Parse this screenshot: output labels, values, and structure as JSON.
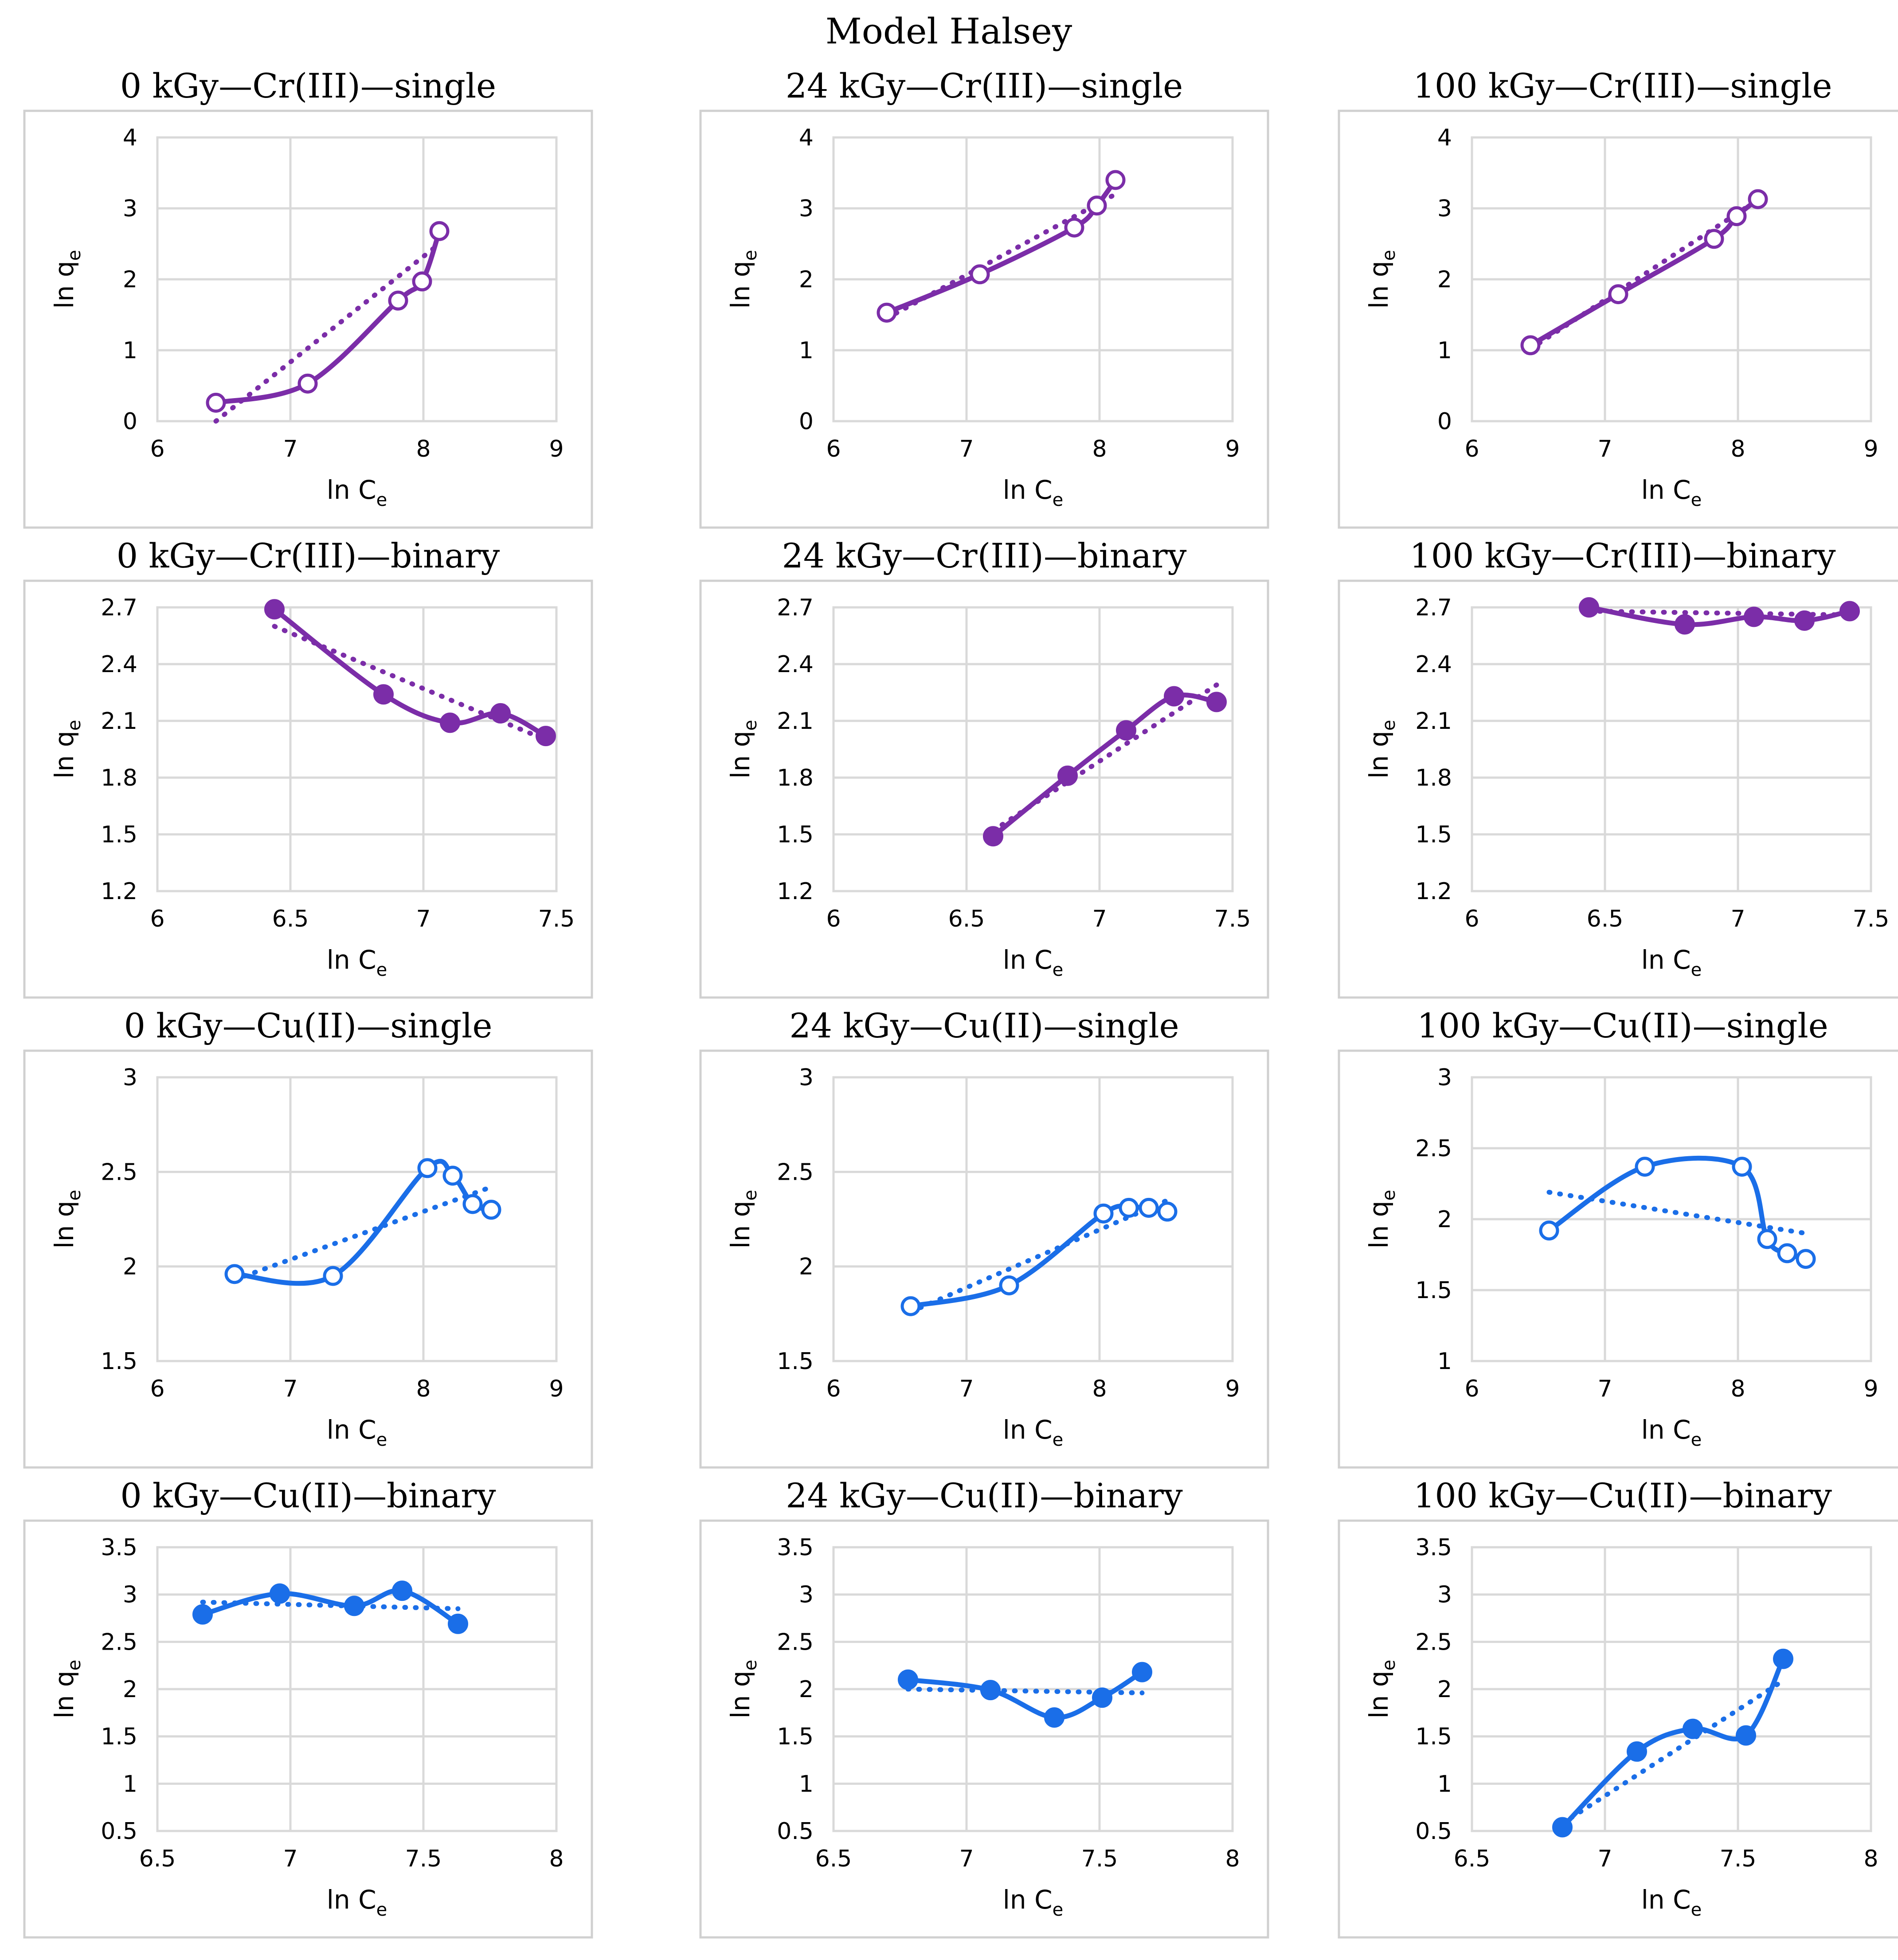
{
  "figure": {
    "title": "Model Halsey"
  },
  "colors": {
    "cr": "#7B2DA8",
    "cu": "#1A6EE8"
  },
  "chart_data": [
    {
      "type": "scatter",
      "title": "0 kGy—Cr(III)—single",
      "xlabel": "ln C",
      "xlabel_sub": "e",
      "ylabel": "ln q",
      "ylabel_sub": "e",
      "xlim": [
        6,
        9
      ],
      "ylim": [
        0,
        4
      ],
      "xticks": [
        6,
        7,
        8,
        9
      ],
      "xtick_labels": [
        "6",
        "7",
        "8",
        "9"
      ],
      "yticks": [
        0,
        1,
        2,
        3,
        4
      ],
      "ytick_labels": [
        "0",
        "1",
        "2",
        "3",
        "4"
      ],
      "color": "#7B2DA8",
      "marker": "open",
      "grid": true,
      "x": [
        6.44,
        7.13,
        7.81,
        7.99,
        8.12
      ],
      "y": [
        0.26,
        0.53,
        1.7,
        1.97,
        2.68
      ],
      "trendline": [
        [
          6.44,
          0.0
        ],
        [
          8.12,
          2.5
        ]
      ]
    },
    {
      "type": "scatter",
      "title": "24 kGy—Cr(III)—single",
      "xlabel": "ln C",
      "xlabel_sub": "e",
      "ylabel": "ln q",
      "ylabel_sub": "e",
      "xlim": [
        6,
        9
      ],
      "ylim": [
        0,
        4
      ],
      "xticks": [
        6,
        7,
        8,
        9
      ],
      "xtick_labels": [
        "6",
        "7",
        "8",
        "9"
      ],
      "yticks": [
        0,
        1,
        2,
        3,
        4
      ],
      "ytick_labels": [
        "0",
        "1",
        "2",
        "3",
        "4"
      ],
      "color": "#7B2DA8",
      "marker": "open",
      "grid": true,
      "x": [
        6.4,
        7.1,
        7.81,
        7.98,
        8.12
      ],
      "y": [
        1.53,
        2.07,
        2.73,
        3.04,
        3.4
      ],
      "trendline": [
        [
          6.4,
          1.45
        ],
        [
          8.12,
          3.2
        ]
      ]
    },
    {
      "type": "scatter",
      "title": "100 kGy—Cr(III)—single",
      "xlabel": "ln C",
      "xlabel_sub": "e",
      "ylabel": "ln q",
      "ylabel_sub": "e",
      "xlim": [
        6,
        9
      ],
      "ylim": [
        0,
        4
      ],
      "xticks": [
        6,
        7,
        8,
        9
      ],
      "xtick_labels": [
        "6",
        "7",
        "8",
        "9"
      ],
      "yticks": [
        0,
        1,
        2,
        3,
        4
      ],
      "ytick_labels": [
        "0",
        "1",
        "2",
        "3",
        "4"
      ],
      "color": "#7B2DA8",
      "marker": "open",
      "grid": true,
      "x": [
        6.44,
        7.1,
        7.82,
        7.99,
        8.15
      ],
      "y": [
        1.07,
        1.79,
        2.57,
        2.89,
        3.13
      ],
      "trendline": [
        [
          6.44,
          1.02
        ],
        [
          8.15,
          3.12
        ]
      ]
    },
    {
      "type": "scatter",
      "title": "0 kGy—Cr(III)—binary",
      "xlabel": "ln C",
      "xlabel_sub": "e",
      "ylabel": "ln q",
      "ylabel_sub": "e",
      "xlim": [
        6,
        7.5
      ],
      "ylim": [
        1.2,
        2.7
      ],
      "xticks": [
        6,
        6.5,
        7,
        7.5
      ],
      "xtick_labels": [
        "6",
        "6.5",
        "7",
        "7.5"
      ],
      "yticks": [
        1.2,
        1.5,
        1.8,
        2.1,
        2.4,
        2.7
      ],
      "ytick_labels": [
        "1.2",
        "1.5",
        "1.8",
        "2.1",
        "2.4",
        "2.7"
      ],
      "color": "#7B2DA8",
      "marker": "filled",
      "grid": true,
      "x": [
        6.44,
        6.85,
        7.1,
        7.29,
        7.46
      ],
      "y": [
        2.69,
        2.24,
        2.09,
        2.14,
        2.02
      ],
      "trendline": [
        [
          6.44,
          2.6
        ],
        [
          7.46,
          2.0
        ]
      ]
    },
    {
      "type": "scatter",
      "title": "24 kGy—Cr(III)—binary",
      "xlabel": "ln C",
      "xlabel_sub": "e",
      "ylabel": "ln q",
      "ylabel_sub": "e",
      "xlim": [
        6,
        7.5
      ],
      "ylim": [
        1.2,
        2.7
      ],
      "xticks": [
        6,
        6.5,
        7,
        7.5
      ],
      "xtick_labels": [
        "6",
        "6.5",
        "7",
        "7.5"
      ],
      "yticks": [
        1.2,
        1.5,
        1.8,
        2.1,
        2.4,
        2.7
      ],
      "ytick_labels": [
        "1.2",
        "1.5",
        "1.8",
        "2.1",
        "2.4",
        "2.7"
      ],
      "color": "#7B2DA8",
      "marker": "filled",
      "grid": true,
      "x": [
        6.6,
        6.88,
        7.1,
        7.28,
        7.44
      ],
      "y": [
        1.49,
        1.81,
        2.05,
        2.23,
        2.2
      ],
      "trendline": [
        [
          6.6,
          1.52
        ],
        [
          7.44,
          2.29
        ]
      ]
    },
    {
      "type": "scatter",
      "title": "100 kGy—Cr(III)—binary",
      "xlabel": "ln C",
      "xlabel_sub": "e",
      "ylabel": "ln q",
      "ylabel_sub": "e",
      "xlim": [
        6,
        7.5
      ],
      "ylim": [
        1.2,
        2.7
      ],
      "xticks": [
        6,
        6.5,
        7,
        7.5
      ],
      "xtick_labels": [
        "6",
        "6.5",
        "7",
        "7.5"
      ],
      "yticks": [
        1.2,
        1.5,
        1.8,
        2.1,
        2.4,
        2.7
      ],
      "ytick_labels": [
        "1.2",
        "1.5",
        "1.8",
        "2.1",
        "2.4",
        "2.7"
      ],
      "color": "#7B2DA8",
      "marker": "filled",
      "grid": true,
      "x": [
        6.44,
        6.8,
        7.06,
        7.25,
        7.42
      ],
      "y": [
        2.7,
        2.61,
        2.65,
        2.63,
        2.68
      ],
      "trendline": [
        [
          6.44,
          2.68
        ],
        [
          7.42,
          2.66
        ]
      ]
    },
    {
      "type": "scatter",
      "title": "0 kGy—Cu(II)—single",
      "xlabel": "ln C",
      "xlabel_sub": "e",
      "ylabel": "ln q",
      "ylabel_sub": "e",
      "xlim": [
        6,
        9
      ],
      "ylim": [
        1.5,
        3
      ],
      "xticks": [
        6,
        7,
        8,
        9
      ],
      "xtick_labels": [
        "6",
        "7",
        "8",
        "9"
      ],
      "yticks": [
        1.5,
        2,
        2.5,
        3
      ],
      "ytick_labels": [
        "1.5",
        "2",
        "2.5",
        "3"
      ],
      "color": "#1A6EE8",
      "marker": "open",
      "grid": true,
      "x": [
        6.58,
        7.32,
        8.03,
        8.22,
        8.37,
        8.51
      ],
      "y": [
        1.96,
        1.95,
        2.52,
        2.48,
        2.33,
        2.3
      ],
      "trendline": [
        [
          6.58,
          1.93
        ],
        [
          8.51,
          2.42
        ]
      ]
    },
    {
      "type": "scatter",
      "title": "24 kGy—Cu(II)—single",
      "xlabel": "ln C",
      "xlabel_sub": "e",
      "ylabel": "ln q",
      "ylabel_sub": "e",
      "xlim": [
        6,
        9
      ],
      "ylim": [
        1.5,
        3
      ],
      "xticks": [
        6,
        7,
        8,
        9
      ],
      "xtick_labels": [
        "6",
        "7",
        "8",
        "9"
      ],
      "yticks": [
        1.5,
        2,
        2.5,
        3
      ],
      "ytick_labels": [
        "1.5",
        "2",
        "2.5",
        "3"
      ],
      "color": "#1A6EE8",
      "marker": "open",
      "grid": true,
      "x": [
        6.58,
        7.32,
        8.03,
        8.22,
        8.37,
        8.51
      ],
      "y": [
        1.79,
        1.9,
        2.28,
        2.31,
        2.31,
        2.29
      ],
      "trendline": [
        [
          6.58,
          1.76
        ],
        [
          8.51,
          2.35
        ]
      ]
    },
    {
      "type": "scatter",
      "title": "100 kGy—Cu(II)—single",
      "xlabel": "ln C",
      "xlabel_sub": "e",
      "ylabel": "ln q",
      "ylabel_sub": "e",
      "xlim": [
        6,
        9
      ],
      "ylim": [
        1,
        3
      ],
      "xticks": [
        6,
        7,
        8,
        9
      ],
      "xtick_labels": [
        "6",
        "7",
        "8",
        "9"
      ],
      "yticks": [
        1,
        1.5,
        2,
        2.5,
        3
      ],
      "ytick_labels": [
        "1",
        "1.5",
        "2",
        "2.5",
        "3"
      ],
      "color": "#1A6EE8",
      "marker": "open",
      "grid": true,
      "x": [
        6.58,
        7.3,
        8.03,
        8.22,
        8.37,
        8.51
      ],
      "y": [
        1.92,
        2.37,
        2.37,
        1.86,
        1.76,
        1.72
      ],
      "trendline": [
        [
          6.58,
          2.19
        ],
        [
          8.51,
          1.9
        ]
      ]
    },
    {
      "type": "scatter",
      "title": "0 kGy—Cu(II)—binary",
      "xlabel": "ln C",
      "xlabel_sub": "e",
      "ylabel": "ln q",
      "ylabel_sub": "e",
      "xlim": [
        6.5,
        8
      ],
      "ylim": [
        0.5,
        3.5
      ],
      "xticks": [
        6.5,
        7,
        7.5,
        8
      ],
      "xtick_labels": [
        "6.5",
        "7",
        "7.5",
        "8"
      ],
      "yticks": [
        0.5,
        1,
        1.5,
        2,
        2.5,
        3,
        3.5
      ],
      "ytick_labels": [
        "0.5",
        "1",
        "1.5",
        "2",
        "2.5",
        "3",
        "3.5"
      ],
      "color": "#1A6EE8",
      "marker": "filled",
      "grid": true,
      "x": [
        6.67,
        6.96,
        7.24,
        7.42,
        7.63
      ],
      "y": [
        2.79,
        3.01,
        2.88,
        3.04,
        2.69
      ],
      "trendline": [
        [
          6.67,
          2.92
        ],
        [
          7.63,
          2.85
        ]
      ]
    },
    {
      "type": "scatter",
      "title": "24 kGy—Cu(II)—binary",
      "xlabel": "ln C",
      "xlabel_sub": "e",
      "ylabel": "ln q",
      "ylabel_sub": "e",
      "xlim": [
        6.5,
        8
      ],
      "ylim": [
        0.5,
        3.5
      ],
      "xticks": [
        6.5,
        7,
        7.5,
        8
      ],
      "xtick_labels": [
        "6.5",
        "7",
        "7.5",
        "8"
      ],
      "yticks": [
        0.5,
        1,
        1.5,
        2,
        2.5,
        3,
        3.5
      ],
      "ytick_labels": [
        "0.5",
        "1",
        "1.5",
        "2",
        "2.5",
        "3",
        "3.5"
      ],
      "color": "#1A6EE8",
      "marker": "filled",
      "grid": true,
      "x": [
        6.78,
        7.09,
        7.33,
        7.51,
        7.66
      ],
      "y": [
        2.1,
        1.99,
        1.7,
        1.91,
        2.18
      ],
      "trendline": [
        [
          6.78,
          2.0
        ],
        [
          7.66,
          1.96
        ]
      ]
    },
    {
      "type": "scatter",
      "title": "100 kGy—Cu(II)—binary",
      "xlabel": "ln C",
      "xlabel_sub": "e",
      "ylabel": "ln q",
      "ylabel_sub": "e",
      "xlim": [
        6.5,
        8
      ],
      "ylim": [
        0.5,
        3.5
      ],
      "xticks": [
        6.5,
        7,
        7.5,
        8
      ],
      "xtick_labels": [
        "6.5",
        "7",
        "7.5",
        "8"
      ],
      "yticks": [
        0.5,
        1,
        1.5,
        2,
        2.5,
        3,
        3.5
      ],
      "ytick_labels": [
        "0.5",
        "1",
        "1.5",
        "2",
        "2.5",
        "3",
        "3.5"
      ],
      "color": "#1A6EE8",
      "marker": "filled",
      "grid": true,
      "x": [
        6.84,
        7.12,
        7.33,
        7.53,
        7.67
      ],
      "y": [
        0.54,
        1.34,
        1.58,
        1.51,
        2.32
      ],
      "trendline": [
        [
          6.84,
          0.58
        ],
        [
          7.67,
          2.09
        ]
      ]
    }
  ]
}
